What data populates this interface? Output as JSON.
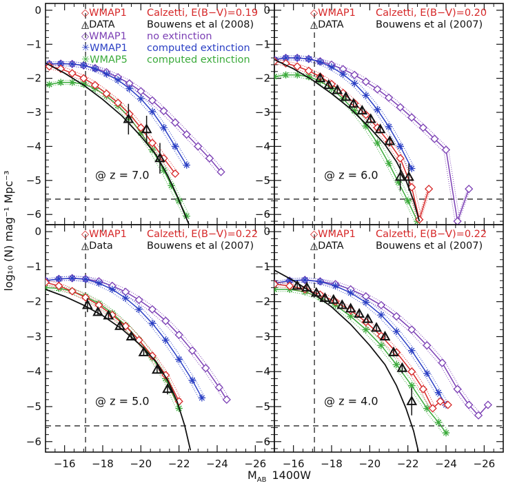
{
  "figure": {
    "xlabel_main": "M",
    "xlabel_sub": "AB",
    "xlabel_rest": "1400W",
    "ylabel": "log₁₀ (N)  mag⁻¹ Mpc⁻³"
  },
  "colors": {
    "red": "#d62728",
    "black": "#111111",
    "purple": "#7b3fb4",
    "blue": "#2a3fc4",
    "green": "#3aaa3a"
  },
  "chart_data": [
    {
      "type": "line",
      "panel": "top-left",
      "xlim": [
        -15,
        -27
      ],
      "ylim": [
        -6.3,
        0.2
      ],
      "xticks": [
        -16,
        -18,
        -20,
        -22,
        -24,
        -26
      ],
      "yticks": [
        0,
        -1,
        -2,
        -3,
        -4,
        -5,
        -6
      ],
      "annotation": "@ z = 7.0",
      "vline": -17.1,
      "hline": -5.55,
      "legend": [
        {
          "marker": "◇",
          "label": "WMAP1",
          "desc": "Calzetti,  E(B−V)=0.19",
          "color": "red"
        },
        {
          "marker": "△",
          "label": "DATA",
          "desc": "Bouwens et al (2008)",
          "color": "black"
        },
        {
          "marker": "◇",
          "label": "WMAP1",
          "desc": "no extinction",
          "color": "purple"
        },
        {
          "marker": "✳",
          "label": "WMAP1",
          "desc": "computed extinction",
          "color": "blue"
        },
        {
          "marker": "✳",
          "label": "WMAP5",
          "desc": "computed extinction",
          "color": "green"
        }
      ],
      "series": [
        {
          "name": "WMAP1 no extinction",
          "color": "purple",
          "marker": "diamond",
          "x": [
            -15.2,
            -15.8,
            -16.4,
            -17,
            -17.6,
            -18.2,
            -18.8,
            -19.4,
            -20,
            -20.6,
            -21.2,
            -21.8,
            -22.4,
            -23,
            -23.6,
            -24.2
          ],
          "y": [
            -1.58,
            -1.57,
            -1.58,
            -1.62,
            -1.7,
            -1.82,
            -1.97,
            -2.15,
            -2.38,
            -2.65,
            -2.96,
            -3.3,
            -3.65,
            -4.0,
            -4.35,
            -4.75
          ]
        },
        {
          "name": "WMAP1 computed extinction",
          "color": "blue",
          "marker": "star",
          "x": [
            -15.2,
            -15.8,
            -16.4,
            -17,
            -17.6,
            -18.2,
            -18.8,
            -19.4,
            -20,
            -20.6,
            -21.2,
            -21.8,
            -22.4
          ],
          "y": [
            -1.58,
            -1.57,
            -1.58,
            -1.62,
            -1.72,
            -1.87,
            -2.05,
            -2.3,
            -2.6,
            -2.98,
            -3.45,
            -4.0,
            -4.55
          ]
        },
        {
          "name": "WMAP5 computed extinction",
          "color": "green",
          "marker": "star",
          "x": [
            -15.2,
            -15.8,
            -16.4,
            -17,
            -17.6,
            -18.2,
            -18.8,
            -19.4,
            -20,
            -20.6,
            -21.2,
            -21.6,
            -22,
            -22.4
          ],
          "y": [
            -2.18,
            -2.12,
            -2.12,
            -2.17,
            -2.3,
            -2.52,
            -2.8,
            -3.15,
            -3.6,
            -4.1,
            -4.7,
            -5.15,
            -5.6,
            -6.05
          ]
        },
        {
          "name": "WMAP1 Calzetti",
          "color": "red",
          "marker": "diamond",
          "x": [
            -15.2,
            -15.8,
            -16.4,
            -17,
            -17.6,
            -18.2,
            -18.8,
            -19.4,
            -20,
            -20.6,
            -21.2,
            -21.8
          ],
          "y": [
            -1.65,
            -1.72,
            -1.85,
            -2.0,
            -2.2,
            -2.45,
            -2.72,
            -3.05,
            -3.45,
            -3.9,
            -4.35,
            -4.8
          ]
        }
      ],
      "fit": {
        "x": [
          -15,
          -16,
          -17,
          -18,
          -19,
          -20,
          -20.8,
          -21.4,
          -21.9,
          -22.3,
          -22.6
        ],
        "y": [
          -1.55,
          -1.85,
          -2.2,
          -2.62,
          -3.1,
          -3.7,
          -4.25,
          -4.85,
          -5.45,
          -6.0,
          -6.4
        ]
      },
      "data_points": {
        "x": [
          -19.35,
          -20.3,
          -21
        ],
        "y": [
          -3.2,
          -3.5,
          -4.35
        ],
        "err": [
          0.45,
          0.4,
          0.45
        ]
      }
    },
    {
      "type": "line",
      "panel": "top-right",
      "xlim": [
        -15,
        -27
      ],
      "ylim": [
        -6.3,
        0.2
      ],
      "xticks": [
        -16,
        -18,
        -20,
        -22,
        -24,
        -26
      ],
      "yticks": [
        0,
        -1,
        -2,
        -3,
        -4,
        -5,
        -6
      ],
      "annotation": "@ z = 6.0",
      "vline": -17.1,
      "hline": -5.55,
      "legend": [
        {
          "marker": "◇",
          "label": "WMAP1",
          "desc": "Calzetti,  E(B−V)=0.20",
          "color": "red"
        },
        {
          "marker": "△",
          "label": "DATA",
          "desc": "Bouwens et al (2007)",
          "color": "black"
        }
      ],
      "series": [
        {
          "name": "WMAP1 no extinction",
          "color": "purple",
          "marker": "diamond",
          "x": [
            -15,
            -15.6,
            -16.2,
            -16.8,
            -17.4,
            -18,
            -18.6,
            -19.2,
            -19.8,
            -20.4,
            -21,
            -21.6,
            -22.2,
            -22.8,
            -23.4,
            -24,
            -24.6,
            -25.2
          ],
          "y": [
            -1.45,
            -1.4,
            -1.4,
            -1.43,
            -1.5,
            -1.6,
            -1.73,
            -1.9,
            -2.1,
            -2.32,
            -2.57,
            -2.85,
            -3.15,
            -3.45,
            -3.78,
            -4.1,
            -6.2,
            -5.25
          ]
        },
        {
          "name": "WMAP1 computed extinction",
          "color": "blue",
          "marker": "star",
          "x": [
            -15,
            -15.6,
            -16.2,
            -16.8,
            -17.4,
            -18,
            -18.6,
            -19.2,
            -19.8,
            -20.4,
            -21,
            -21.6,
            -22.2
          ],
          "y": [
            -1.45,
            -1.4,
            -1.4,
            -1.43,
            -1.52,
            -1.67,
            -1.88,
            -2.15,
            -2.5,
            -2.92,
            -3.42,
            -4.0,
            -4.65
          ]
        },
        {
          "name": "WMAP5 computed extinction",
          "color": "green",
          "marker": "star",
          "x": [
            -15,
            -15.6,
            -16.2,
            -16.8,
            -17.4,
            -18,
            -18.6,
            -19.2,
            -19.8,
            -20.4,
            -21,
            -21.5,
            -22,
            -22.5
          ],
          "y": [
            -1.95,
            -1.9,
            -1.9,
            -1.95,
            -2.08,
            -2.3,
            -2.6,
            -2.95,
            -3.4,
            -3.9,
            -4.5,
            -5.05,
            -5.6,
            -6.2
          ]
        },
        {
          "name": "WMAP1 Calzetti",
          "color": "red",
          "marker": "diamond",
          "x": [
            -15,
            -15.6,
            -16.2,
            -16.8,
            -17.4,
            -18,
            -18.6,
            -19.2,
            -19.8,
            -20.4,
            -21,
            -21.6,
            -22.2,
            -22.6,
            -23.1
          ],
          "y": [
            -1.5,
            -1.56,
            -1.65,
            -1.78,
            -1.95,
            -2.17,
            -2.43,
            -2.73,
            -3.07,
            -3.45,
            -3.87,
            -4.35,
            -5.2,
            -6.15,
            -5.25
          ]
        }
      ],
      "fit": {
        "x": [
          -15,
          -16,
          -17,
          -18,
          -19,
          -20,
          -20.8,
          -21.4,
          -21.9,
          -22.3,
          -22.6
        ],
        "y": [
          -1.45,
          -1.72,
          -2.05,
          -2.45,
          -2.9,
          -3.45,
          -3.95,
          -4.45,
          -5.0,
          -5.6,
          -6.2
        ]
      },
      "data_points": {
        "x": [
          -17.4,
          -17.85,
          -18.3,
          -18.75,
          -19.15,
          -19.6,
          -20.05,
          -20.55,
          -21.05,
          -21.6,
          -22.05
        ],
        "y": [
          -2.0,
          -2.2,
          -2.35,
          -2.55,
          -2.75,
          -2.95,
          -3.2,
          -3.5,
          -3.85,
          -4.9,
          -4.9
        ],
        "err": [
          0.1,
          0.1,
          0.1,
          0.1,
          0.1,
          0.1,
          0.1,
          0.12,
          0.15,
          0.4,
          0.4
        ]
      }
    },
    {
      "type": "line",
      "panel": "bottom-left",
      "xlim": [
        -15,
        -27
      ],
      "ylim": [
        -6.3,
        0.2
      ],
      "xticks": [
        -16,
        -18,
        -20,
        -22,
        -24,
        -26
      ],
      "yticks": [
        0,
        -1,
        -2,
        -3,
        -4,
        -5,
        -6
      ],
      "annotation": "@ z = 5.0",
      "vline": -17.1,
      "hline": -5.55,
      "legend": [
        {
          "marker": "◇",
          "label": "WMAP1",
          "desc": "Calzetti,  E(B−V)=0.22",
          "color": "red"
        },
        {
          "marker": "△",
          "label": "Data",
          "desc": "Bouwens et al (2007)",
          "color": "black"
        }
      ],
      "series": [
        {
          "name": "WMAP1 no extinction",
          "color": "purple",
          "marker": "diamond",
          "x": [
            -15,
            -15.7,
            -16.4,
            -17.1,
            -17.8,
            -18.5,
            -19.2,
            -19.9,
            -20.6,
            -21.3,
            -22,
            -22.7,
            -23.4,
            -24.1,
            -24.5
          ],
          "y": [
            -1.4,
            -1.35,
            -1.33,
            -1.35,
            -1.42,
            -1.55,
            -1.72,
            -1.95,
            -2.22,
            -2.55,
            -2.95,
            -3.4,
            -3.9,
            -4.45,
            -4.8
          ]
        },
        {
          "name": "WMAP1 computed extinction",
          "color": "blue",
          "marker": "star",
          "x": [
            -15,
            -15.7,
            -16.4,
            -17.1,
            -17.8,
            -18.5,
            -19.2,
            -19.9,
            -20.6,
            -21.3,
            -22,
            -22.7,
            -23.2
          ],
          "y": [
            -1.4,
            -1.35,
            -1.33,
            -1.36,
            -1.47,
            -1.65,
            -1.9,
            -2.22,
            -2.62,
            -3.1,
            -3.65,
            -4.25,
            -4.75
          ]
        },
        {
          "name": "WMAP5 computed extinction",
          "color": "green",
          "marker": "star",
          "x": [
            -15,
            -15.7,
            -16.4,
            -17.1,
            -17.8,
            -18.5,
            -19.2,
            -19.9,
            -20.6,
            -21.3,
            -22
          ],
          "y": [
            -1.6,
            -1.62,
            -1.7,
            -1.85,
            -2.05,
            -2.33,
            -2.68,
            -3.1,
            -3.6,
            -4.2,
            -5.05
          ]
        },
        {
          "name": "WMAP1 Calzetti",
          "color": "red",
          "marker": "diamond",
          "x": [
            -15,
            -15.7,
            -16.4,
            -17.1,
            -17.8,
            -18.5,
            -19.2,
            -19.9,
            -20.6,
            -21.3,
            -22
          ],
          "y": [
            -1.45,
            -1.55,
            -1.7,
            -1.88,
            -2.1,
            -2.38,
            -2.7,
            -3.1,
            -3.55,
            -4.1,
            -4.85
          ]
        }
      ],
      "fit": {
        "x": [
          -15,
          -16,
          -17,
          -18,
          -19,
          -20,
          -20.8,
          -21.4,
          -21.9,
          -22.3,
          -22.6
        ],
        "y": [
          -1.65,
          -1.85,
          -2.1,
          -2.4,
          -2.78,
          -3.25,
          -3.72,
          -4.25,
          -4.85,
          -5.55,
          -6.25
        ]
      },
      "data_points": {
        "x": [
          -17.2,
          -17.75,
          -18.3,
          -18.9,
          -19.5,
          -20.15,
          -20.85,
          -21.4
        ],
        "y": [
          -2.1,
          -2.3,
          -2.4,
          -2.7,
          -3.0,
          -3.45,
          -3.95,
          -4.5
        ],
        "err": [
          0.2,
          0.08,
          0.08,
          0.08,
          0.08,
          0.1,
          0.1,
          0.15
        ]
      }
    },
    {
      "type": "line",
      "panel": "bottom-right",
      "xlim": [
        -15,
        -27
      ],
      "ylim": [
        -6.3,
        0.2
      ],
      "xticks": [
        -16,
        -18,
        -20,
        -22,
        -24,
        -26
      ],
      "yticks": [
        0,
        -1,
        -2,
        -3,
        -4,
        -5,
        -6
      ],
      "annotation": "@ z = 4.0",
      "vline": -17.1,
      "hline": -5.55,
      "legend": [
        {
          "marker": "◇",
          "label": "WMAP1",
          "desc": "Calzetti,  E(B−V)=0.22",
          "color": "red"
        },
        {
          "marker": "△",
          "label": "DATA",
          "desc": "Bouwens et al (2007)",
          "color": "black"
        }
      ],
      "series": [
        {
          "name": "WMAP1 no extinction",
          "color": "purple",
          "marker": "diamond",
          "x": [
            -15,
            -15.8,
            -16.6,
            -17.4,
            -18.2,
            -19,
            -19.8,
            -20.6,
            -21.4,
            -22.2,
            -23,
            -23.8,
            -24.6,
            -25.2,
            -25.7,
            -26.2
          ],
          "y": [
            -1.48,
            -1.4,
            -1.38,
            -1.42,
            -1.5,
            -1.65,
            -1.85,
            -2.1,
            -2.42,
            -2.8,
            -3.25,
            -3.75,
            -4.5,
            -4.95,
            -5.25,
            -4.95
          ]
        },
        {
          "name": "WMAP1 computed extinction",
          "color": "blue",
          "marker": "star",
          "x": [
            -15,
            -15.8,
            -16.6,
            -17.4,
            -18.2,
            -19,
            -19.8,
            -20.6,
            -21.4,
            -22.2,
            -23,
            -23.6,
            -24
          ],
          "y": [
            -1.48,
            -1.4,
            -1.38,
            -1.43,
            -1.55,
            -1.75,
            -2.02,
            -2.38,
            -2.85,
            -3.4,
            -4.05,
            -4.6,
            -4.95
          ]
        },
        {
          "name": "WMAP5 computed extinction",
          "color": "green",
          "marker": "star",
          "x": [
            -15,
            -15.8,
            -16.6,
            -17.4,
            -18.2,
            -19,
            -19.8,
            -20.6,
            -21.4,
            -22.2,
            -23,
            -23.6,
            -24
          ],
          "y": [
            -1.65,
            -1.65,
            -1.72,
            -1.88,
            -2.1,
            -2.42,
            -2.8,
            -3.25,
            -3.8,
            -4.4,
            -5.05,
            -5.45,
            -5.75
          ]
        },
        {
          "name": "WMAP1 Calzetti",
          "color": "red",
          "marker": "diamond",
          "x": [
            -15,
            -15.8,
            -16.6,
            -17.4,
            -18.2,
            -19,
            -19.8,
            -20.6,
            -21.4,
            -22.2,
            -22.8,
            -23.3,
            -23.7,
            -24.1
          ],
          "y": [
            -1.5,
            -1.55,
            -1.65,
            -1.8,
            -2.0,
            -2.25,
            -2.58,
            -2.98,
            -3.45,
            -4.0,
            -4.5,
            -5.05,
            -4.85,
            -4.95
          ]
        }
      ],
      "fit": {
        "x": [
          -15,
          -16,
          -17,
          -18,
          -19,
          -20,
          -20.8,
          -21.4,
          -21.9,
          -22.3,
          -22.6
        ],
        "y": [
          -1.1,
          -1.4,
          -1.75,
          -2.15,
          -2.65,
          -3.25,
          -3.8,
          -4.4,
          -5.05,
          -5.7,
          -6.4
        ]
      },
      "data_points": {
        "x": [
          -16.2,
          -16.7,
          -17.2,
          -17.65,
          -18.1,
          -18.55,
          -19,
          -19.45,
          -19.9,
          -20.35,
          -20.8,
          -21.25,
          -21.7,
          -22.2
        ],
        "y": [
          -1.55,
          -1.6,
          -1.75,
          -1.9,
          -1.95,
          -2.1,
          -2.2,
          -2.35,
          -2.5,
          -2.75,
          -3.0,
          -3.45,
          -3.9,
          -4.85
        ],
        "err": [
          0.1,
          0.08,
          0.08,
          0.08,
          0.08,
          0.08,
          0.08,
          0.08,
          0.08,
          0.08,
          0.1,
          0.12,
          0.15,
          0.4
        ]
      }
    }
  ]
}
